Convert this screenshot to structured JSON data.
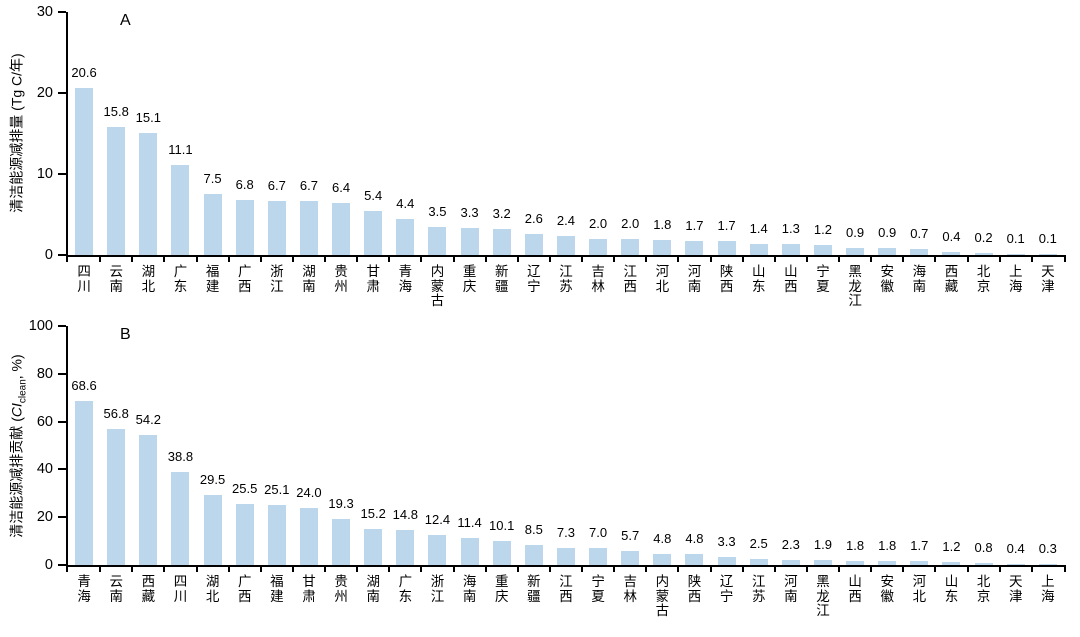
{
  "figure": {
    "background": "#FFFFFF"
  },
  "colors": {
    "bar_fill": "#BCD6EC",
    "axis": "#000000",
    "text": "#000000"
  },
  "chart_data": [
    {
      "type": "bar",
      "panel_label": "A",
      "ylabel_prefix": "清洁能源减排量 (Tg C/年)",
      "ylabel_symbol": "",
      "ylabel_sub": "",
      "ylabel_suffix": "",
      "ylabel_full": "清洁能源减排量 (Tg C/年)",
      "xlabel": "",
      "ylim": [
        0,
        30
      ],
      "yticks": [
        0,
        10,
        20,
        30
      ],
      "grid": false,
      "legend": "none",
      "bar_color": "#BCD6EC",
      "categories": [
        "四川",
        "云南",
        "湖北",
        "广东",
        "福建",
        "广西",
        "浙江",
        "湖南",
        "贵州",
        "甘肃",
        "青海",
        "内蒙古",
        "重庆",
        "新疆",
        "辽宁",
        "江苏",
        "吉林",
        "江西",
        "河北",
        "河南",
        "陕西",
        "山东",
        "山西",
        "宁夏",
        "黑龙江",
        "安徽",
        "海南",
        "西藏",
        "北京",
        "上海",
        "天津"
      ],
      "values": [
        20.6,
        15.8,
        15.1,
        11.1,
        7.5,
        6.8,
        6.7,
        6.7,
        6.4,
        5.4,
        4.4,
        3.5,
        3.3,
        3.2,
        2.6,
        2.4,
        2.0,
        2.0,
        1.8,
        1.7,
        1.7,
        1.4,
        1.3,
        1.2,
        0.9,
        0.9,
        0.7,
        0.4,
        0.2,
        0.1,
        0.1
      ],
      "value_labels": [
        "20.6",
        "15.8",
        "15.1",
        "11.1",
        "7.5",
        "6.8",
        "6.7",
        "6.7",
        "6.4",
        "5.4",
        "4.4",
        "3.5",
        "3.3",
        "3.2",
        "2.6",
        "2.4",
        "2.0",
        "2.0",
        "1.8",
        "1.7",
        "1.7",
        "1.4",
        "1.3",
        "1.2",
        "0.9",
        "0.9",
        "0.7",
        "0.4",
        "0.2",
        "0.1",
        "0.1"
      ]
    },
    {
      "type": "bar",
      "panel_label": "B",
      "ylabel_prefix": "清洁能源减排贡献 (",
      "ylabel_symbol": "CI",
      "ylabel_sub": "clean",
      "ylabel_suffix": ", %)",
      "ylabel_full": "清洁能源减排贡献 (CI_clean, %)",
      "xlabel": "",
      "ylim": [
        0,
        100
      ],
      "yticks": [
        0,
        20,
        40,
        60,
        80,
        100
      ],
      "grid": false,
      "legend": "none",
      "bar_color": "#BCD6EC",
      "categories": [
        "青海",
        "云南",
        "西藏",
        "四川",
        "湖北",
        "广西",
        "福建",
        "甘肃",
        "贵州",
        "湖南",
        "广东",
        "浙江",
        "海南",
        "重庆",
        "新疆",
        "江西",
        "宁夏",
        "吉林",
        "内蒙古",
        "陕西",
        "辽宁",
        "江苏",
        "河南",
        "黑龙江",
        "山西",
        "安徽",
        "河北",
        "山东",
        "北京",
        "天津",
        "上海"
      ],
      "values": [
        68.6,
        56.8,
        54.2,
        38.8,
        29.5,
        25.5,
        25.1,
        24.0,
        19.3,
        15.2,
        14.8,
        12.4,
        11.4,
        10.1,
        8.5,
        7.3,
        7.0,
        5.7,
        4.8,
        4.8,
        3.3,
        2.5,
        2.3,
        1.9,
        1.8,
        1.8,
        1.7,
        1.2,
        0.8,
        0.4,
        0.3
      ],
      "value_labels": [
        "68.6",
        "56.8",
        "54.2",
        "38.8",
        "29.5",
        "25.5",
        "25.1",
        "24.0",
        "19.3",
        "15.2",
        "14.8",
        "12.4",
        "11.4",
        "10.1",
        "8.5",
        "7.3",
        "7.0",
        "5.7",
        "4.8",
        "4.8",
        "3.3",
        "2.5",
        "2.3",
        "1.9",
        "1.8",
        "1.8",
        "1.7",
        "1.2",
        "0.8",
        "0.4",
        "0.3"
      ]
    }
  ]
}
